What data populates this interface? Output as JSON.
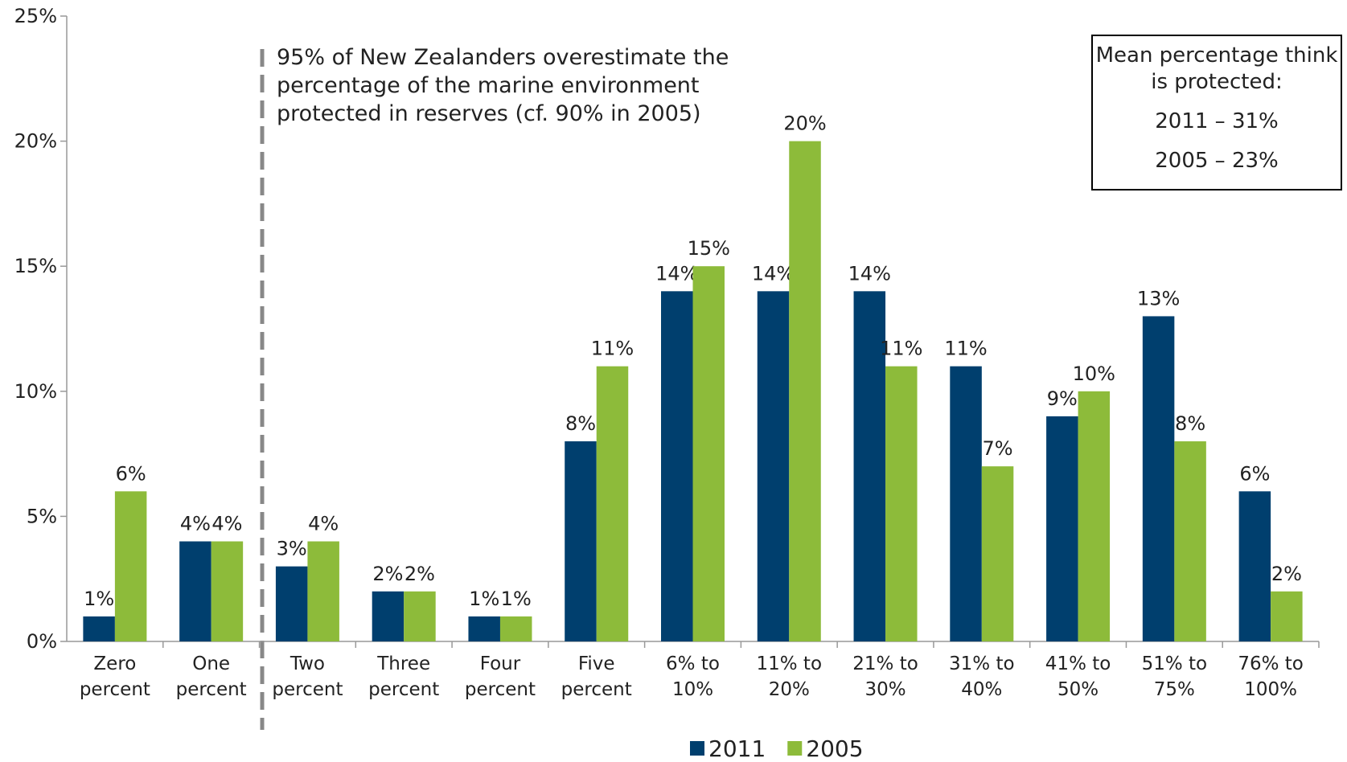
{
  "chart_data": {
    "type": "bar",
    "categories": [
      "Zero percent",
      "One percent",
      "Two percent",
      "Three percent",
      "Four percent",
      "Five percent",
      "6% to 10%",
      "11% to 20%",
      "21% to 30%",
      "31% to 40%",
      "41% to 50%",
      "51% to 75%",
      "76% to 100%"
    ],
    "series": [
      {
        "name": "2011",
        "color": "#003f6e",
        "values": [
          1,
          4,
          3,
          2,
          1,
          8,
          14,
          14,
          14,
          11,
          9,
          13,
          6
        ],
        "value_labels": [
          "1%",
          "4%",
          "3%",
          "2%",
          "1%",
          "8%",
          "14%",
          "14%",
          "14%",
          "11%",
          "9%",
          "13%",
          "6%"
        ]
      },
      {
        "name": "2005",
        "color": "#8dbb3a",
        "values": [
          6,
          4,
          4,
          2,
          1,
          11,
          15,
          20,
          11,
          7,
          10,
          8,
          2
        ],
        "value_labels": [
          "6%",
          "4%",
          "4%",
          "2%",
          "1%",
          "11%",
          "15%",
          "20%",
          "11%",
          "7%",
          "10%",
          "8%",
          "2%"
        ]
      }
    ],
    "ylim": [
      0,
      25
    ],
    "yticks": [
      {
        "value": 0,
        "label": "0%"
      },
      {
        "value": 5,
        "label": "5%"
      },
      {
        "value": 10,
        "label": "10%"
      },
      {
        "value": 15,
        "label": "15%"
      },
      {
        "value": 20,
        "label": "20%"
      },
      {
        "value": 25,
        "label": "25%"
      }
    ],
    "annotation": "95% of New Zealanders overestimate the percentage of the marine environment protected in reserves (cf. 90% in 2005)",
    "box_lines": [
      "Mean percentage think is protected:",
      "2011 – 31%",
      "2005 – 23%"
    ],
    "legend": "bottom"
  }
}
